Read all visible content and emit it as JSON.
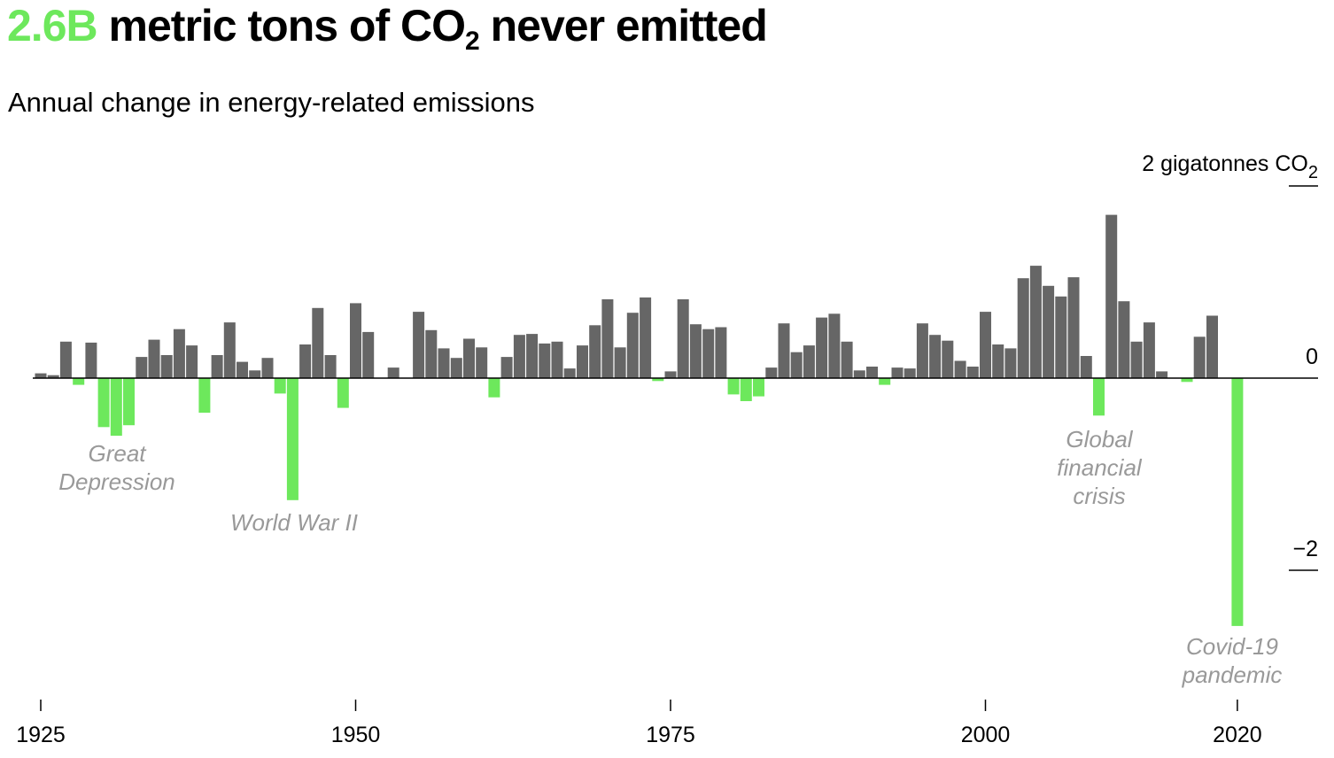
{
  "header": {
    "headline_value": "2.6B",
    "headline_text_before_sub": "metric tons of CO",
    "headline_sub": "2",
    "headline_text_after_sub": "never emitted",
    "subtitle": "Annual change in energy-related emissions"
  },
  "colors": {
    "increase": "#666666",
    "decrease": "#6de85c",
    "annotation": "#999999",
    "axis": "#000000"
  },
  "chart_data": {
    "type": "bar",
    "unit_label": "2 gigatonnes CO",
    "unit_label_sub": "2",
    "ylim": [
      -3.3,
      2.1
    ],
    "y_ticks": [
      {
        "value": 2,
        "label": ""
      },
      {
        "value": 0,
        "label": "0"
      },
      {
        "value": -2,
        "label": "−2"
      }
    ],
    "x_ticks": [
      1925,
      1950,
      1975,
      2000,
      2020
    ],
    "grid": false,
    "x": [
      1925,
      1926,
      1927,
      1928,
      1929,
      1930,
      1931,
      1932,
      1933,
      1934,
      1935,
      1936,
      1937,
      1938,
      1939,
      1940,
      1941,
      1942,
      1943,
      1944,
      1945,
      1946,
      1947,
      1948,
      1949,
      1950,
      1951,
      1952,
      1953,
      1954,
      1955,
      1956,
      1957,
      1958,
      1959,
      1960,
      1961,
      1962,
      1963,
      1964,
      1965,
      1966,
      1967,
      1968,
      1969,
      1970,
      1971,
      1972,
      1973,
      1974,
      1975,
      1976,
      1977,
      1978,
      1979,
      1980,
      1981,
      1982,
      1983,
      1984,
      1985,
      1986,
      1987,
      1988,
      1989,
      1990,
      1991,
      1992,
      1993,
      1994,
      1995,
      1996,
      1997,
      1998,
      1999,
      2000,
      2001,
      2002,
      2003,
      2004,
      2005,
      2006,
      2007,
      2008,
      2009,
      2010,
      2011,
      2012,
      2013,
      2014,
      2015,
      2016,
      2017,
      2018,
      2019,
      2020
    ],
    "values": [
      0.05,
      0.03,
      0.38,
      -0.07,
      0.37,
      -0.51,
      -0.6,
      -0.49,
      0.22,
      0.4,
      0.24,
      0.51,
      0.34,
      -0.36,
      0.24,
      0.58,
      0.17,
      0.08,
      0.21,
      -0.16,
      -1.27,
      0.35,
      0.73,
      0.24,
      -0.31,
      0.78,
      0.48,
      0.0,
      0.11,
      0.0,
      0.69,
      0.5,
      0.31,
      0.21,
      0.41,
      0.32,
      -0.2,
      0.22,
      0.45,
      0.46,
      0.36,
      0.38,
      0.1,
      0.34,
      0.55,
      0.82,
      0.32,
      0.68,
      0.84,
      -0.03,
      0.07,
      0.82,
      0.56,
      0.51,
      0.53,
      -0.17,
      -0.24,
      -0.19,
      0.11,
      0.57,
      0.27,
      0.34,
      0.63,
      0.67,
      0.38,
      0.08,
      0.12,
      -0.07,
      0.11,
      0.1,
      0.57,
      0.45,
      0.39,
      0.18,
      0.12,
      0.69,
      0.35,
      0.31,
      1.04,
      1.17,
      0.96,
      0.85,
      1.05,
      0.23,
      -0.39,
      1.7,
      0.8,
      0.38,
      0.58,
      0.07,
      0.0,
      -0.04,
      0.43,
      0.65,
      0.0,
      -2.58
    ],
    "annotations": [
      {
        "lines": [
          "Great",
          "Depression"
        ],
        "year": 1931
      },
      {
        "lines": [
          "World War II"
        ],
        "year": 1945
      },
      {
        "lines": [
          "Global",
          "financial",
          "crisis"
        ],
        "year": 2009
      },
      {
        "lines": [
          "Covid-19",
          "pandemic"
        ],
        "year": 2019
      }
    ]
  }
}
